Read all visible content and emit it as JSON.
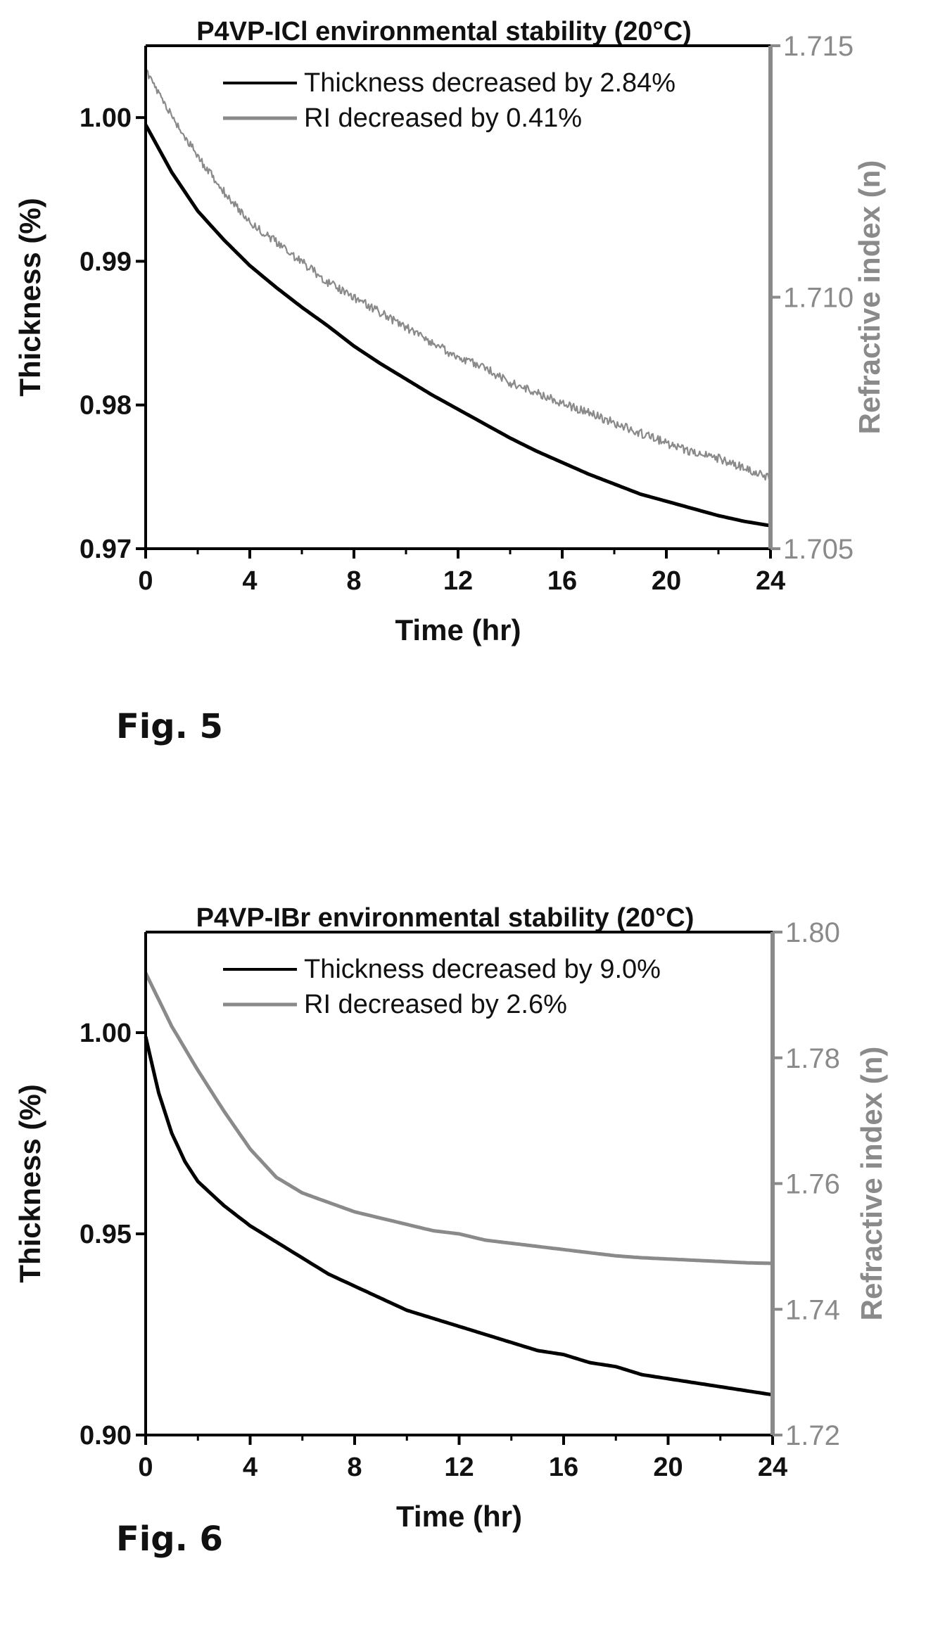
{
  "figures": [
    {
      "label": "Fig. 5",
      "chart_data": {
        "type": "line",
        "title": "P4VP-ICl environmental stability (20°C)",
        "xlabel": "Time (hr)",
        "ylabel": "Thickness (%)",
        "y2label": "Refractive index (n)",
        "xlim": [
          0,
          24
        ],
        "ylim": [
          0.97,
          1.005
        ],
        "y2lim": [
          1.705,
          1.715
        ],
        "xticks": [
          "0",
          "4",
          "8",
          "12",
          "16",
          "20",
          "24"
        ],
        "yticks": [
          "0.97",
          "0.98",
          "0.99",
          "1.00"
        ],
        "y2ticks": [
          "1.705",
          "1.710",
          "1.715"
        ],
        "grid": false,
        "legend_position": "top-right",
        "series": [
          {
            "name": "Thickness decreased by 2.84%",
            "axis": "left",
            "color": "#000000",
            "x": [
              0,
              1,
              2,
              3,
              4,
              5,
              6,
              7,
              8,
              9,
              10,
              11,
              12,
              13,
              14,
              15,
              16,
              17,
              18,
              19,
              20,
              21,
              22,
              23,
              24
            ],
            "y": [
              0.9995,
              0.9962,
              0.9935,
              0.9915,
              0.9897,
              0.9882,
              0.9868,
              0.9855,
              0.9841,
              0.9829,
              0.9818,
              0.9807,
              0.9797,
              0.9787,
              0.9777,
              0.9768,
              0.976,
              0.9752,
              0.9745,
              0.9738,
              0.9733,
              0.9728,
              0.9723,
              0.9719,
              0.9716
            ]
          },
          {
            "name": "RI decreased by 0.41%",
            "axis": "right",
            "color": "#8a8a8a",
            "noisy": true,
            "x": [
              0,
              1,
              2,
              3,
              4,
              5,
              6,
              7,
              8,
              9,
              10,
              11,
              12,
              13,
              14,
              15,
              16,
              17,
              18,
              19,
              20,
              21,
              22,
              23,
              24
            ],
            "y": [
              1.7145,
              1.7136,
              1.7128,
              1.7121,
              1.7115,
              1.7111,
              1.7107,
              1.7103,
              1.71,
              1.7097,
              1.7094,
              1.7091,
              1.7088,
              1.7086,
              1.7083,
              1.7081,
              1.7079,
              1.7077,
              1.7075,
              1.7073,
              1.7071,
              1.7069,
              1.7068,
              1.7066,
              1.7064
            ]
          }
        ]
      }
    },
    {
      "label": "Fig. 6",
      "chart_data": {
        "type": "line",
        "title": "P4VP-IBr environmental stability (20°C)",
        "xlabel": "Time (hr)",
        "ylabel": "Thickness (%)",
        "y2label": "Refractive index (n)",
        "xlim": [
          0,
          24
        ],
        "ylim": [
          0.9,
          1.025
        ],
        "y2lim": [
          1.72,
          1.8
        ],
        "xticks": [
          "0",
          "4",
          "8",
          "12",
          "16",
          "20",
          "24"
        ],
        "yticks": [
          "0.90",
          "0.95",
          "1.00"
        ],
        "y2ticks": [
          "1.72",
          "1.74",
          "1.76",
          "1.78",
          "1.80"
        ],
        "grid": false,
        "legend_position": "top-right",
        "series": [
          {
            "name": "Thickness decreased by 9.0%",
            "axis": "left",
            "color": "#000000",
            "x": [
              0,
              0.5,
              1,
              1.5,
              2,
              3,
              4,
              5,
              6,
              7,
              8,
              9,
              10,
              11,
              12,
              13,
              14,
              15,
              16,
              17,
              18,
              19,
              20,
              21,
              22,
              23,
              24
            ],
            "y": [
              0.999,
              0.985,
              0.975,
              0.968,
              0.963,
              0.957,
              0.952,
              0.948,
              0.944,
              0.94,
              0.937,
              0.934,
              0.931,
              0.929,
              0.927,
              0.925,
              0.923,
              0.921,
              0.92,
              0.918,
              0.917,
              0.915,
              0.914,
              0.913,
              0.912,
              0.911,
              0.91
            ]
          },
          {
            "name": "RI decreased by 2.6%",
            "axis": "right",
            "color": "#8a8a8a",
            "noisy": false,
            "x": [
              0,
              1,
              2,
              3,
              4,
              5,
              6,
              7,
              8,
              9,
              10,
              11,
              12,
              13,
              14,
              15,
              16,
              17,
              18,
              19,
              20,
              21,
              22,
              23,
              24
            ],
            "y": [
              1.7935,
              1.785,
              1.778,
              1.7715,
              1.7655,
              1.761,
              1.7585,
              1.757,
              1.7555,
              1.7545,
              1.7535,
              1.7525,
              1.752,
              1.751,
              1.7505,
              1.75,
              1.7495,
              1.749,
              1.7485,
              1.7482,
              1.748,
              1.7478,
              1.7476,
              1.7474,
              1.7473
            ]
          }
        ]
      }
    }
  ]
}
